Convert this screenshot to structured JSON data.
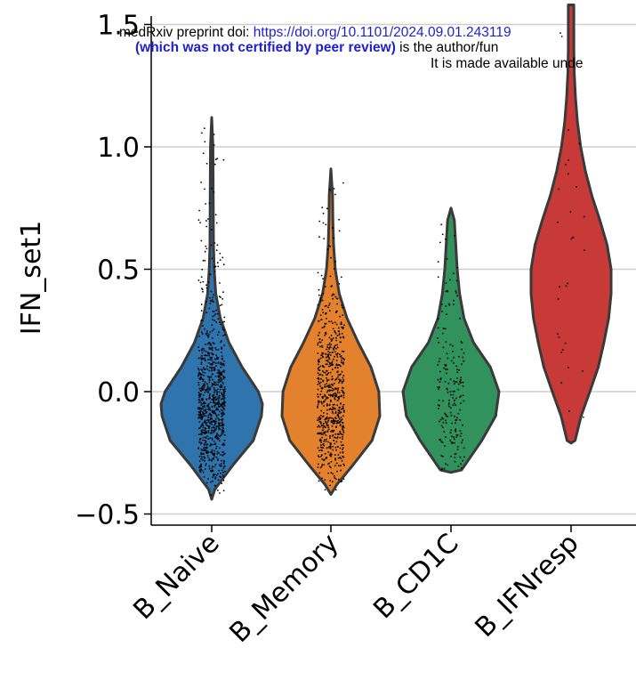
{
  "banner": {
    "prefix": "medRxiv preprint doi: ",
    "doi": "https://doi.org/10.1101/2024.09.01.243119",
    "bold_part": "(which was not certified by peer review)",
    "rest": " is the author/fun",
    "line3": "It is made available unde"
  },
  "chart_data": {
    "type": "violin",
    "title": "",
    "xlabel": "",
    "ylabel": "IFN_set1",
    "ylim": [
      -0.55,
      1.58
    ],
    "yticks": [
      -0.5,
      0.0,
      0.5,
      1.0,
      1.5
    ],
    "ytick_labels": [
      "−0.5",
      "0.0",
      "0.5",
      "1.0",
      "1.5"
    ],
    "grid": "horizontal",
    "categories": [
      "B_Naive",
      "B_Memory",
      "B_CD1C",
      "B_IFNresp"
    ],
    "series": [
      {
        "colour": "#2f74ad",
        "min": -0.44,
        "max": 1.12,
        "points_shown": 900,
        "density": [
          [
            -0.44,
            0.0
          ],
          [
            -0.4,
            0.06
          ],
          [
            -0.3,
            0.42
          ],
          [
            -0.2,
            0.82
          ],
          [
            -0.1,
            0.98
          ],
          [
            -0.05,
            1.0
          ],
          [
            0.0,
            0.92
          ],
          [
            0.1,
            0.6
          ],
          [
            0.2,
            0.34
          ],
          [
            0.3,
            0.17
          ],
          [
            0.4,
            0.08
          ],
          [
            0.5,
            0.05
          ],
          [
            0.6,
            0.035
          ],
          [
            0.8,
            0.03
          ],
          [
            1.0,
            0.025
          ],
          [
            1.12,
            0.0
          ]
        ]
      },
      {
        "colour": "#e4812c",
        "min": -0.42,
        "max": 0.91,
        "points_shown": 700,
        "density": [
          [
            -0.42,
            0.0
          ],
          [
            -0.38,
            0.12
          ],
          [
            -0.3,
            0.45
          ],
          [
            -0.2,
            0.84
          ],
          [
            -0.1,
            1.0
          ],
          [
            0.0,
            0.98
          ],
          [
            0.1,
            0.82
          ],
          [
            0.2,
            0.56
          ],
          [
            0.3,
            0.33
          ],
          [
            0.4,
            0.17
          ],
          [
            0.5,
            0.09
          ],
          [
            0.6,
            0.055
          ],
          [
            0.7,
            0.04
          ],
          [
            0.8,
            0.035
          ],
          [
            0.91,
            0.0
          ]
        ]
      },
      {
        "colour": "#32925e",
        "min": -0.33,
        "max": 0.75,
        "points_shown": 200,
        "density": [
          [
            -0.33,
            0.0
          ],
          [
            -0.32,
            0.22
          ],
          [
            -0.2,
            0.64
          ],
          [
            -0.1,
            0.93
          ],
          [
            0.0,
            1.0
          ],
          [
            0.1,
            0.82
          ],
          [
            0.2,
            0.47
          ],
          [
            0.3,
            0.27
          ],
          [
            0.4,
            0.18
          ],
          [
            0.5,
            0.13
          ],
          [
            0.6,
            0.1
          ],
          [
            0.7,
            0.07
          ],
          [
            0.75,
            0.0
          ]
        ]
      },
      {
        "colour": "#c73a38",
        "min": -0.21,
        "max": 1.58,
        "points_shown": 30,
        "density": [
          [
            -0.21,
            0.0
          ],
          [
            -0.2,
            0.1
          ],
          [
            -0.1,
            0.25
          ],
          [
            0.0,
            0.47
          ],
          [
            0.1,
            0.68
          ],
          [
            0.2,
            0.82
          ],
          [
            0.3,
            0.94
          ],
          [
            0.4,
            1.0
          ],
          [
            0.5,
            1.0
          ],
          [
            0.6,
            0.9
          ],
          [
            0.7,
            0.72
          ],
          [
            0.8,
            0.52
          ],
          [
            0.9,
            0.36
          ],
          [
            1.0,
            0.24
          ],
          [
            1.1,
            0.16
          ],
          [
            1.2,
            0.11
          ],
          [
            1.3,
            0.08
          ],
          [
            1.4,
            0.07
          ],
          [
            1.5,
            0.07
          ],
          [
            1.58,
            0.07
          ]
        ]
      }
    ]
  }
}
